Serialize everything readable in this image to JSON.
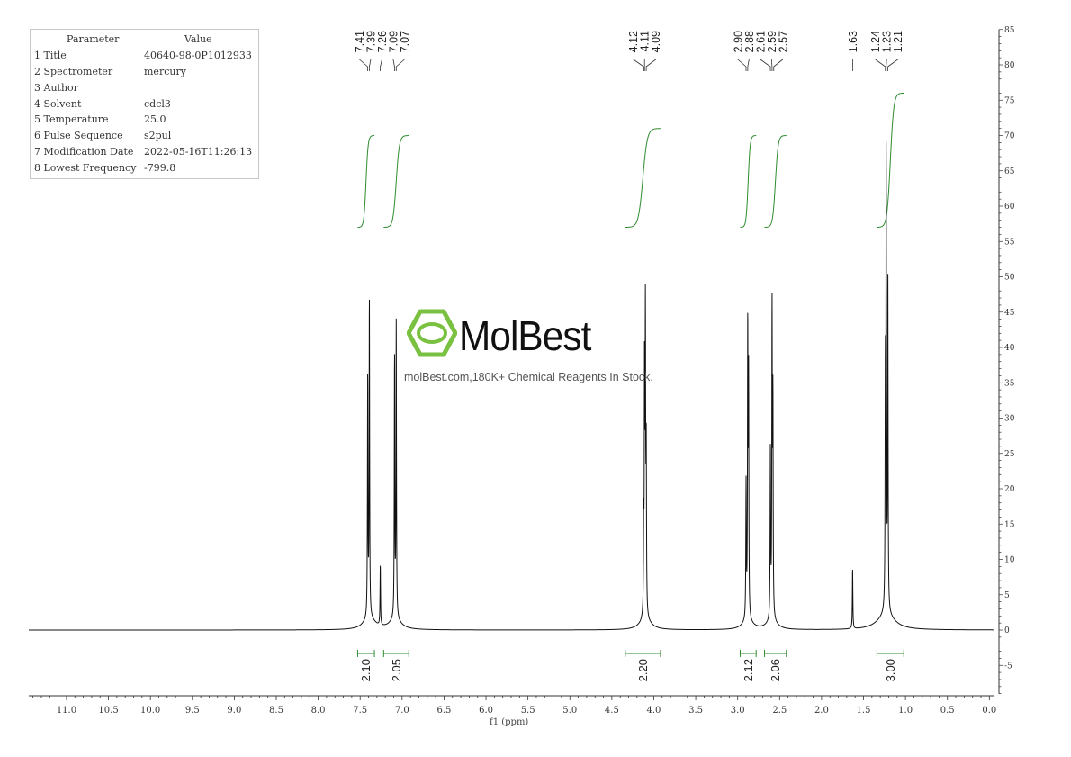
{
  "params": {
    "header_param": "Parameter",
    "header_value": "Value",
    "rows": [
      {
        "name": "1 Title",
        "value": "40640-98-0P1012933"
      },
      {
        "name": "2 Spectrometer",
        "value": "mercury"
      },
      {
        "name": "3 Author",
        "value": ""
      },
      {
        "name": "4 Solvent",
        "value": "cdcl3"
      },
      {
        "name": "5 Temperature",
        "value": "25.0"
      },
      {
        "name": "6 Pulse Sequence",
        "value": "s2pul"
      },
      {
        "name": "7 Modification Date",
        "value": "2022-05-16T11:26:13"
      },
      {
        "name": "8 Lowest Frequency",
        "value": "-799.8"
      }
    ]
  },
  "watermark": {
    "brand": "MolBest",
    "tagline": "molBest.com,180K+ Chemical Reagents In Stock."
  },
  "chart_data": {
    "type": "line",
    "xlabel": "f1 (ppm)",
    "xlim": [
      11.45,
      -0.05
    ],
    "ylim": [
      -9,
      85
    ],
    "x_ticks": [
      "11.0",
      "10.5",
      "10.0",
      "9.5",
      "9.0",
      "8.5",
      "8.0",
      "7.5",
      "7.0",
      "6.5",
      "6.0",
      "5.5",
      "5.0",
      "4.5",
      "4.0",
      "3.5",
      "3.0",
      "2.5",
      "2.0",
      "1.5",
      "1.0",
      "0.5",
      "0.0"
    ],
    "y_ticks": [
      85,
      80,
      75,
      70,
      65,
      60,
      55,
      50,
      45,
      40,
      35,
      30,
      25,
      20,
      15,
      10,
      5,
      0,
      -5
    ],
    "peaks": [
      {
        "ppm": 7.41,
        "height": 34
      },
      {
        "ppm": 7.39,
        "height": 45
      },
      {
        "ppm": 7.26,
        "height": 8.5
      },
      {
        "ppm": 7.09,
        "height": 37
      },
      {
        "ppm": 7.07,
        "height": 41.5
      },
      {
        "ppm": 4.12,
        "height": 12
      },
      {
        "ppm": 4.11,
        "height": 34
      },
      {
        "ppm": 4.1,
        "height": 41
      },
      {
        "ppm": 4.09,
        "height": 23
      },
      {
        "ppm": 2.9,
        "height": 19
      },
      {
        "ppm": 2.88,
        "height": 40.5
      },
      {
        "ppm": 2.87,
        "height": 33
      },
      {
        "ppm": 2.61,
        "height": 24
      },
      {
        "ppm": 2.59,
        "height": 43
      },
      {
        "ppm": 2.58,
        "height": 30
      },
      {
        "ppm": 1.63,
        "height": 8.5
      },
      {
        "ppm": 1.24,
        "height": 32
      },
      {
        "ppm": 1.23,
        "height": 63
      },
      {
        "ppm": 1.21,
        "height": 47
      }
    ],
    "peak_labels": {
      "groups": [
        {
          "labels": [
            "7.41",
            "7.39",
            "7.26",
            "7.09",
            "7.07"
          ],
          "ppms": [
            7.41,
            7.39,
            7.26,
            7.09,
            7.07
          ]
        },
        {
          "labels": [
            "4.12",
            "4.11",
            "4.09"
          ],
          "ppms": [
            4.12,
            4.11,
            4.09
          ]
        },
        {
          "labels": [
            "2.90",
            "2.88",
            "2.61",
            "2.59",
            "2.57"
          ],
          "ppms": [
            2.9,
            2.88,
            2.61,
            2.59,
            2.57
          ]
        },
        {
          "labels": [
            "1.63"
          ],
          "ppms": [
            1.63
          ]
        },
        {
          "labels": [
            "1.24",
            "1.23",
            "1.21"
          ],
          "ppms": [
            1.24,
            1.23,
            1.21
          ]
        }
      ]
    },
    "integrals": [
      {
        "from": 7.53,
        "to": 7.33,
        "value": "2.10"
      },
      {
        "from": 7.22,
        "to": 6.92,
        "value": "2.05"
      },
      {
        "from": 4.34,
        "to": 3.92,
        "value": "2.20"
      },
      {
        "from": 2.97,
        "to": 2.78,
        "value": "2.12"
      },
      {
        "from": 2.68,
        "to": 2.42,
        "value": "2.06"
      },
      {
        "from": 1.34,
        "to": 1.02,
        "value": "3.00"
      }
    ],
    "integral_curves": [
      {
        "from": 7.53,
        "to": 7.33,
        "y0": 57,
        "y1": 70
      },
      {
        "from": 7.22,
        "to": 6.92,
        "y0": 57,
        "y1": 70
      },
      {
        "from": 4.34,
        "to": 3.92,
        "y0": 57,
        "y1": 71
      },
      {
        "from": 2.97,
        "to": 2.78,
        "y0": 57,
        "y1": 70
      },
      {
        "from": 2.68,
        "to": 2.42,
        "y0": 57,
        "y1": 70
      },
      {
        "from": 1.34,
        "to": 1.02,
        "y0": 57,
        "y1": 76
      }
    ],
    "colors": {
      "spectrum": "#111111",
      "integral": "#2e8b2e",
      "axis": "#333333"
    }
  }
}
